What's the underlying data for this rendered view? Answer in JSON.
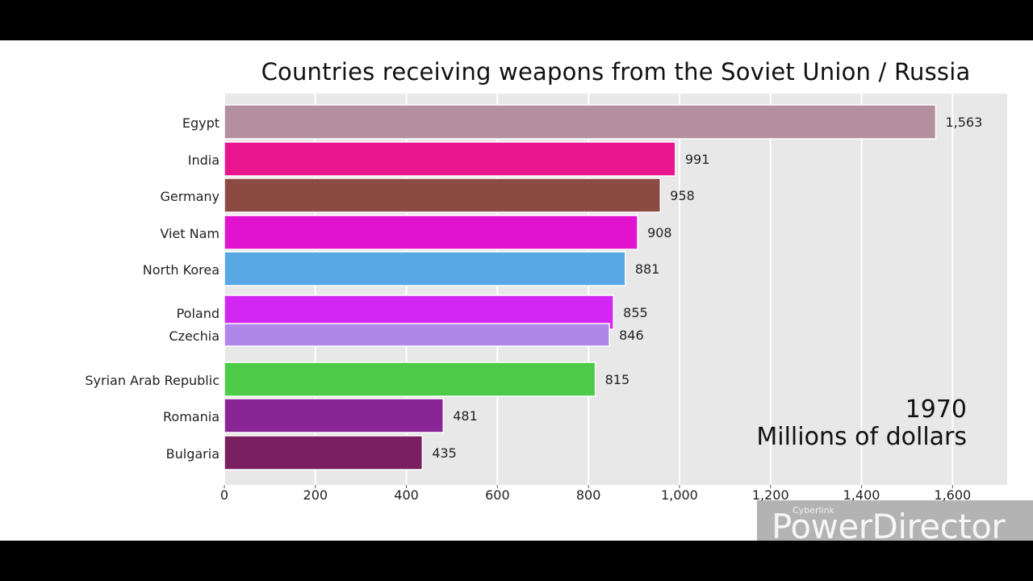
{
  "chart_data": {
    "type": "bar",
    "orientation": "horizontal",
    "title": "Countries receiving weapons from the Soviet Union / Russia",
    "categories": [
      "Egypt",
      "India",
      "Germany",
      "Viet Nam",
      "North Korea",
      "Poland",
      "Czechia",
      "Syrian Arab Republic",
      "Romania",
      "Bulgaria"
    ],
    "values": [
      1563,
      991,
      958,
      908,
      881,
      855,
      846,
      815,
      481,
      435
    ],
    "value_labels": [
      "1,563",
      "991",
      "958",
      "908",
      "881",
      "855",
      "846",
      "815",
      "481",
      "435"
    ],
    "colors": [
      "#b48f9d",
      "#e8158f",
      "#8b4a42",
      "#e213cf",
      "#58a8e3",
      "#d326f2",
      "#ae87e9",
      "#4cca48",
      "#8a2596",
      "#7a1f60"
    ],
    "xticks": [
      0,
      200,
      400,
      600,
      800,
      1000,
      1200,
      1400,
      1600
    ],
    "xtick_labels": [
      "0",
      "200",
      "400",
      "600",
      "800",
      "1,000",
      "1,200",
      "1,400",
      "1,600"
    ],
    "xlim": [
      0,
      1720
    ],
    "xlabel": "",
    "ylabel": "",
    "grid": true,
    "legend": "none"
  },
  "year": "1970",
  "unit": "Millions of dollars",
  "watermark": {
    "small": "Cyberlink",
    "big": "PowerDirector"
  }
}
